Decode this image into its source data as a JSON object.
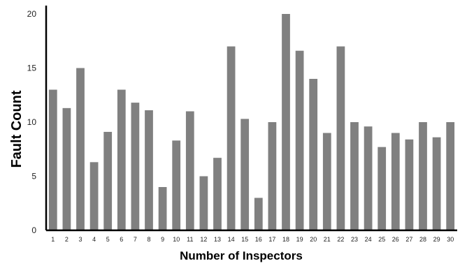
{
  "chart_data": {
    "type": "bar",
    "title": "",
    "xlabel": "Number of Inspectors",
    "ylabel": "Fault Count",
    "ylim": [
      0,
      20
    ],
    "yticks": [
      0,
      5,
      10,
      15,
      20
    ],
    "categories": [
      "1",
      "2",
      "3",
      "4",
      "5",
      "6",
      "7",
      "8",
      "9",
      "10",
      "11",
      "12",
      "13",
      "14",
      "15",
      "16",
      "17",
      "18",
      "19",
      "20",
      "21",
      "22",
      "23",
      "24",
      "25",
      "26",
      "27",
      "28",
      "29",
      "30"
    ],
    "values": [
      13,
      11.3,
      15,
      6.3,
      9.1,
      13,
      11.8,
      11.1,
      4,
      8.3,
      11,
      5,
      6.7,
      17,
      10.3,
      3,
      10,
      20,
      16.6,
      14,
      9,
      17,
      10,
      9.6,
      7.7,
      9,
      8.4,
      10,
      8.6,
      10
    ],
    "bar_color": "#808080",
    "grid": false
  }
}
